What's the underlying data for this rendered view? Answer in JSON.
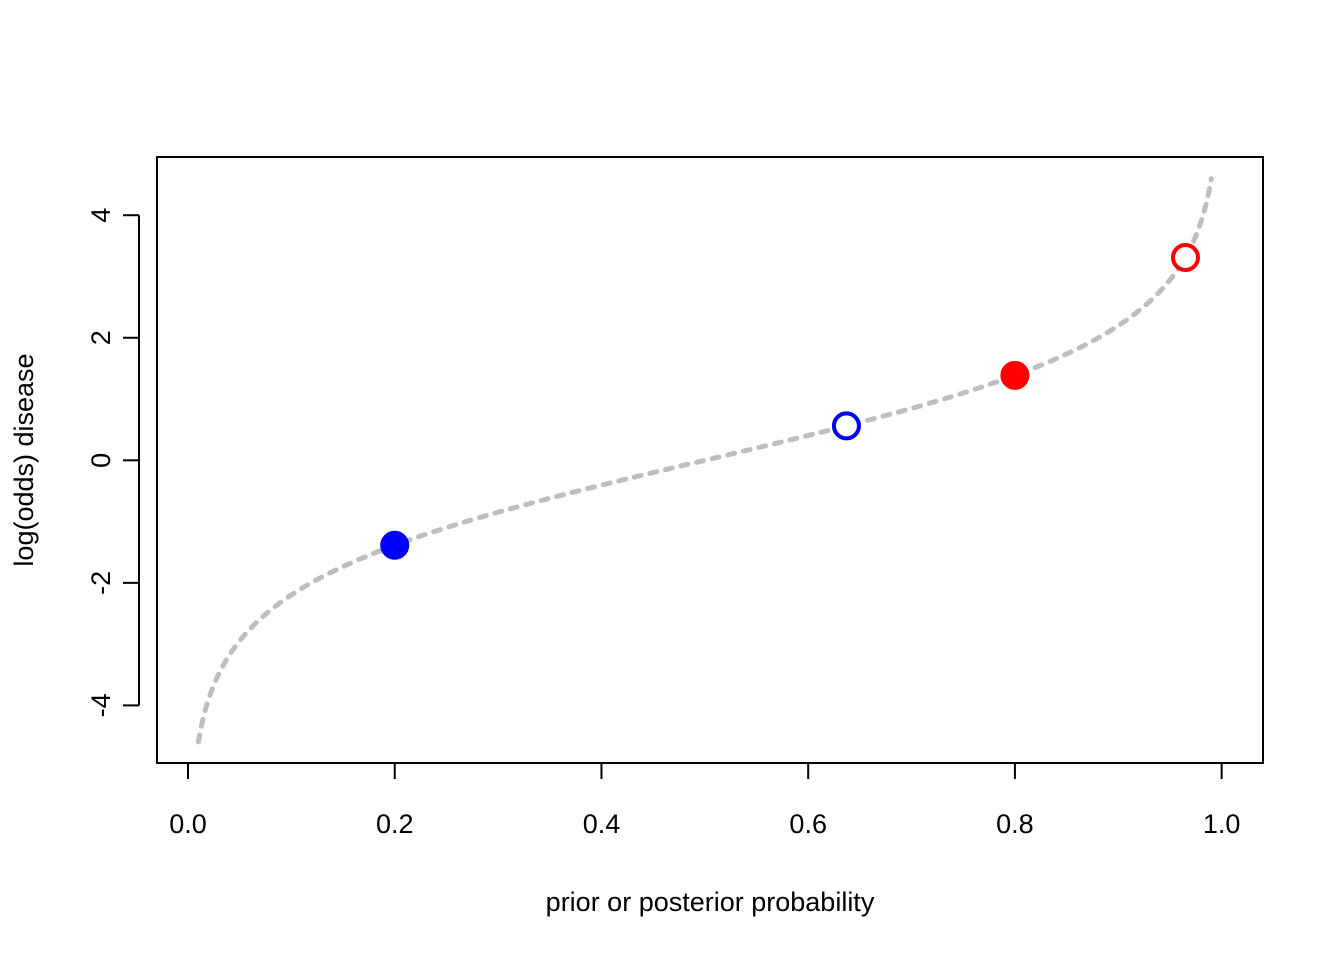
{
  "chart_data": {
    "type": "scatter",
    "title": "",
    "xlabel": "prior or posterior probability",
    "ylabel": "log(odds) disease",
    "xlim": [
      -0.03,
      1.04
    ],
    "ylim": [
      -4.94,
      4.95
    ],
    "x_ticks": [
      0.0,
      0.2,
      0.4,
      0.6,
      0.8,
      1.0
    ],
    "x_tick_labels": [
      "0.0",
      "0.2",
      "0.4",
      "0.6",
      "0.8",
      "1.0"
    ],
    "y_ticks": [
      -4,
      -2,
      0,
      2,
      4
    ],
    "y_tick_labels": [
      "-4",
      "-2",
      "0",
      "2",
      "4"
    ],
    "grid": false,
    "curve": {
      "function": "log(p/(1-p))",
      "x_range": [
        0.01,
        0.99
      ],
      "color": "#bebebe",
      "style": "dotted"
    },
    "points": [
      {
        "x": 0.2,
        "y": -1.386,
        "color": "#0000ff",
        "filled": true
      },
      {
        "x": 0.637,
        "y": 0.562,
        "color": "#0000ff",
        "filled": false
      },
      {
        "x": 0.8,
        "y": 1.386,
        "color": "#ff0000",
        "filled": true
      },
      {
        "x": 0.965,
        "y": 3.31,
        "color": "#ff0000",
        "filled": false
      }
    ]
  }
}
